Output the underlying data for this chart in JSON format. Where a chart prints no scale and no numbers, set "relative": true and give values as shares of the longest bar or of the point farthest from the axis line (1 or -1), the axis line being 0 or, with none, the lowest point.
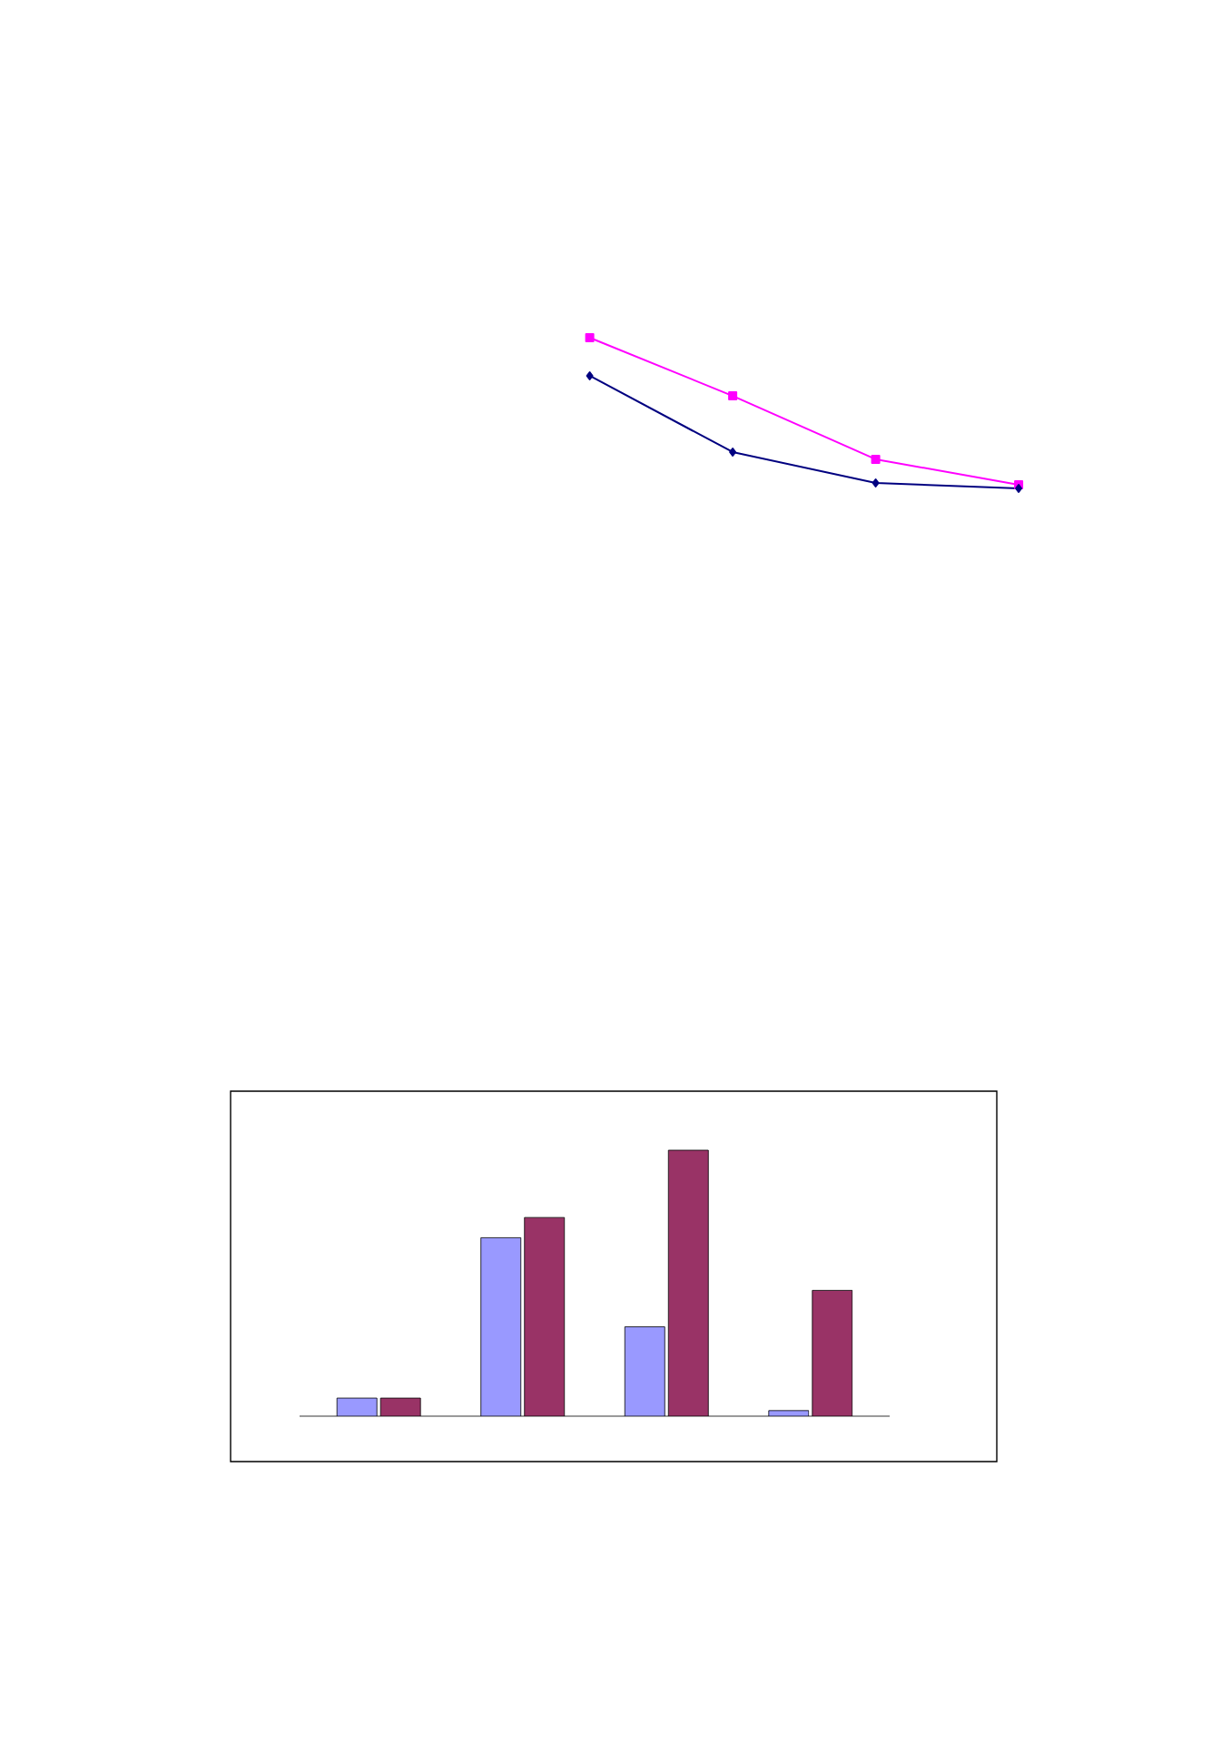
{
  "chart_data": [
    {
      "type": "line",
      "relative": true,
      "categories": [
        null,
        null,
        null,
        null
      ],
      "series": [
        {
          "color": "#ff00ff",
          "marker": "square",
          "values": [
            1,
            0.614,
            0.193,
            0.024
          ]
        },
        {
          "color": "#000080",
          "marker": "diamond",
          "values": [
            0.747,
            0.241,
            0.036,
            0
          ]
        }
      ]
    },
    {
      "type": "bar",
      "relative": true,
      "categories": [
        null,
        null,
        null,
        null
      ],
      "series": [
        {
          "color": "#9999ff",
          "values": [
            0.068,
            0.671,
            0.336,
            0.021
          ]
        },
        {
          "color": "#993366",
          "values": [
            0.068,
            0.747,
            1,
            0.473
          ]
        }
      ]
    }
  ]
}
